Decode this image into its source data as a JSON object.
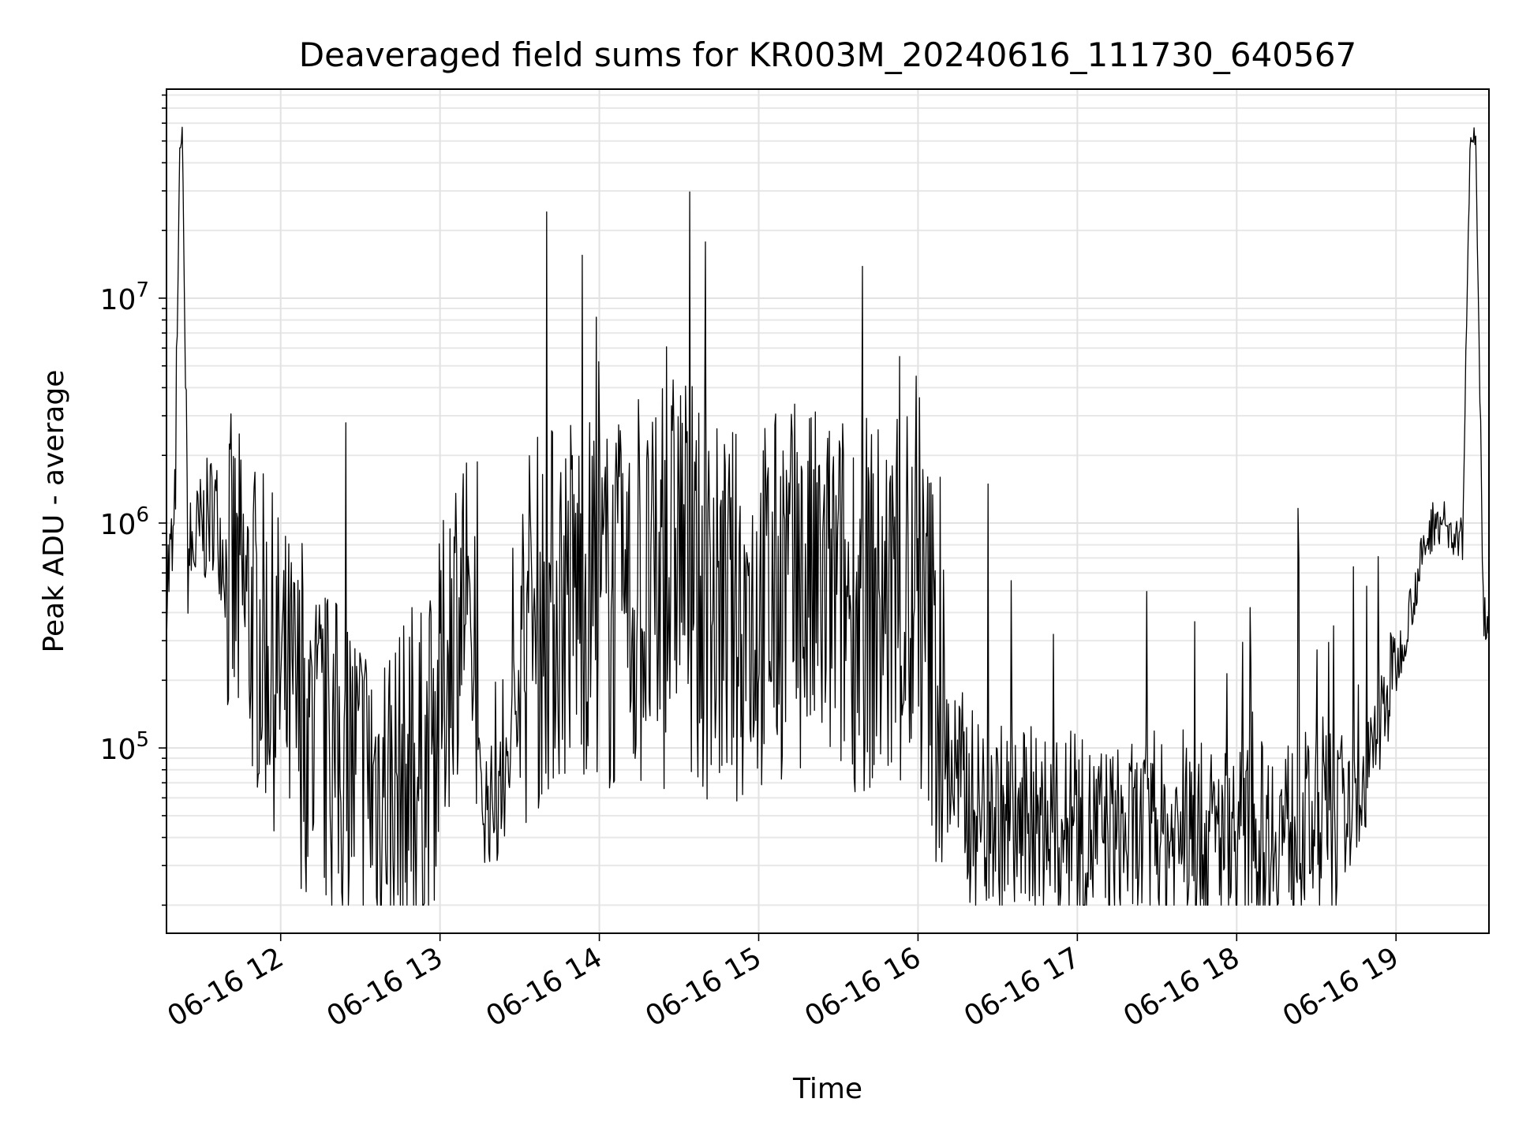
{
  "chart_data": {
    "type": "line",
    "title": "Deaveraged field sums for KR003M_20240616_111730_640567",
    "xlabel": "Time",
    "ylabel": "Peak ADU - average",
    "xlim": [
      "2024-06-16 11:17",
      "2024-06-16 19:35"
    ],
    "ylim": [
      15000,
      85000000
    ],
    "yscale": "log",
    "x_ticks": [
      {
        "label": "06-16 12",
        "value": "2024-06-16 12:00"
      },
      {
        "label": "06-16 13",
        "value": "2024-06-16 13:00"
      },
      {
        "label": "06-16 14",
        "value": "2024-06-16 14:00"
      },
      {
        "label": "06-16 15",
        "value": "2024-06-16 15:00"
      },
      {
        "label": "06-16 16",
        "value": "2024-06-16 16:00"
      },
      {
        "label": "06-16 17",
        "value": "2024-06-16 17:00"
      },
      {
        "label": "06-16 18",
        "value": "2024-06-16 18:00"
      },
      {
        "label": "06-16 19",
        "value": "2024-06-16 19:00"
      }
    ],
    "y_ticks": [
      {
        "base": "10",
        "exp": "5",
        "value": 100000
      },
      {
        "base": "10",
        "exp": "6",
        "value": 1000000
      },
      {
        "base": "10",
        "exp": "7",
        "value": 10000000
      }
    ],
    "grid": true,
    "line_color": "#000000",
    "series": [
      {
        "x": [
          "2024-06-16 11:17",
          "2024-06-16 11:20",
          "2024-06-16 11:22",
          "2024-06-16 11:23",
          "2024-06-16 11:25",
          "2024-06-16 11:27",
          "2024-06-16 11:30",
          "2024-06-16 11:35",
          "2024-06-16 11:40",
          "2024-06-16 11:45",
          "2024-06-16 11:50",
          "2024-06-16 11:55",
          "2024-06-16 12:00",
          "2024-06-16 12:05",
          "2024-06-16 12:10",
          "2024-06-16 12:15",
          "2024-06-16 12:20",
          "2024-06-16 12:25",
          "2024-06-16 12:30",
          "2024-06-16 12:35",
          "2024-06-16 12:40",
          "2024-06-16 12:45",
          "2024-06-16 12:50",
          "2024-06-16 12:55",
          "2024-06-16 13:00",
          "2024-06-16 13:05",
          "2024-06-16 13:10",
          "2024-06-16 13:15",
          "2024-06-16 13:20",
          "2024-06-16 13:25",
          "2024-06-16 13:30",
          "2024-06-16 13:35",
          "2024-06-16 13:40",
          "2024-06-16 13:45",
          "2024-06-16 13:50",
          "2024-06-16 13:55",
          "2024-06-16 14:00",
          "2024-06-16 14:05",
          "2024-06-16 14:10",
          "2024-06-16 14:15",
          "2024-06-16 14:20",
          "2024-06-16 14:25",
          "2024-06-16 14:30",
          "2024-06-16 14:35",
          "2024-06-16 14:40",
          "2024-06-16 14:45",
          "2024-06-16 14:50",
          "2024-06-16 14:55",
          "2024-06-16 15:00",
          "2024-06-16 15:05",
          "2024-06-16 15:10",
          "2024-06-16 15:15",
          "2024-06-16 15:20",
          "2024-06-16 15:25",
          "2024-06-16 15:30",
          "2024-06-16 15:35",
          "2024-06-16 15:40",
          "2024-06-16 15:45",
          "2024-06-16 15:50",
          "2024-06-16 15:55",
          "2024-06-16 16:00",
          "2024-06-16 16:05",
          "2024-06-16 16:10",
          "2024-06-16 16:15",
          "2024-06-16 16:20",
          "2024-06-16 16:25",
          "2024-06-16 16:30",
          "2024-06-16 16:35",
          "2024-06-16 16:40",
          "2024-06-16 16:45",
          "2024-06-16 16:50",
          "2024-06-16 16:55",
          "2024-06-16 17:00",
          "2024-06-16 17:05",
          "2024-06-16 17:10",
          "2024-06-16 17:15",
          "2024-06-16 17:20",
          "2024-06-16 17:25",
          "2024-06-16 17:30",
          "2024-06-16 17:35",
          "2024-06-16 17:40",
          "2024-06-16 17:45",
          "2024-06-16 17:50",
          "2024-06-16 17:55",
          "2024-06-16 18:00",
          "2024-06-16 18:05",
          "2024-06-16 18:10",
          "2024-06-16 18:15",
          "2024-06-16 18:20",
          "2024-06-16 18:25",
          "2024-06-16 18:30",
          "2024-06-16 18:35",
          "2024-06-16 18:40",
          "2024-06-16 18:45",
          "2024-06-16 18:50",
          "2024-06-16 18:55",
          "2024-06-16 19:00",
          "2024-06-16 19:05",
          "2024-06-16 19:10",
          "2024-06-16 19:15",
          "2024-06-16 19:20",
          "2024-06-16 19:25",
          "2024-06-16 19:28",
          "2024-06-16 19:30",
          "2024-06-16 19:33"
        ],
        "y": [
          550000,
          800000,
          45000000,
          55000000,
          700000,
          750000,
          900000,
          1200000,
          600000,
          450000,
          350000,
          280000,
          200000,
          150000,
          120000,
          100000,
          90000,
          80000,
          75000,
          70000,
          70000,
          65000,
          70000,
          80000,
          150000,
          400000,
          500000,
          60000,
          55000,
          65000,
          250000,
          350000,
          400000,
          450000,
          500000,
          500000,
          450000,
          400000,
          400000,
          420000,
          430000,
          450000,
          1000000,
          450000,
          420000,
          400000,
          380000,
          400000,
          420000,
          450000,
          500000,
          500000,
          480000,
          470000,
          460000,
          450000,
          440000,
          420000,
          400000,
          380000,
          350000,
          300000,
          100000,
          70000,
          55000,
          50000,
          48000,
          45000,
          44000,
          43000,
          42000,
          42000,
          42000,
          41000,
          41000,
          40000,
          40000,
          40000,
          40000,
          40000,
          40000,
          40000,
          40000,
          40000,
          41000,
          42000,
          42000,
          43000,
          44000,
          45000,
          45000,
          46000,
          48000,
          55000,
          80000,
          150000,
          220000,
          400000,
          700000,
          1100000,
          900000,
          800000,
          55000000,
          52000000,
          400000
        ]
      }
    ]
  }
}
